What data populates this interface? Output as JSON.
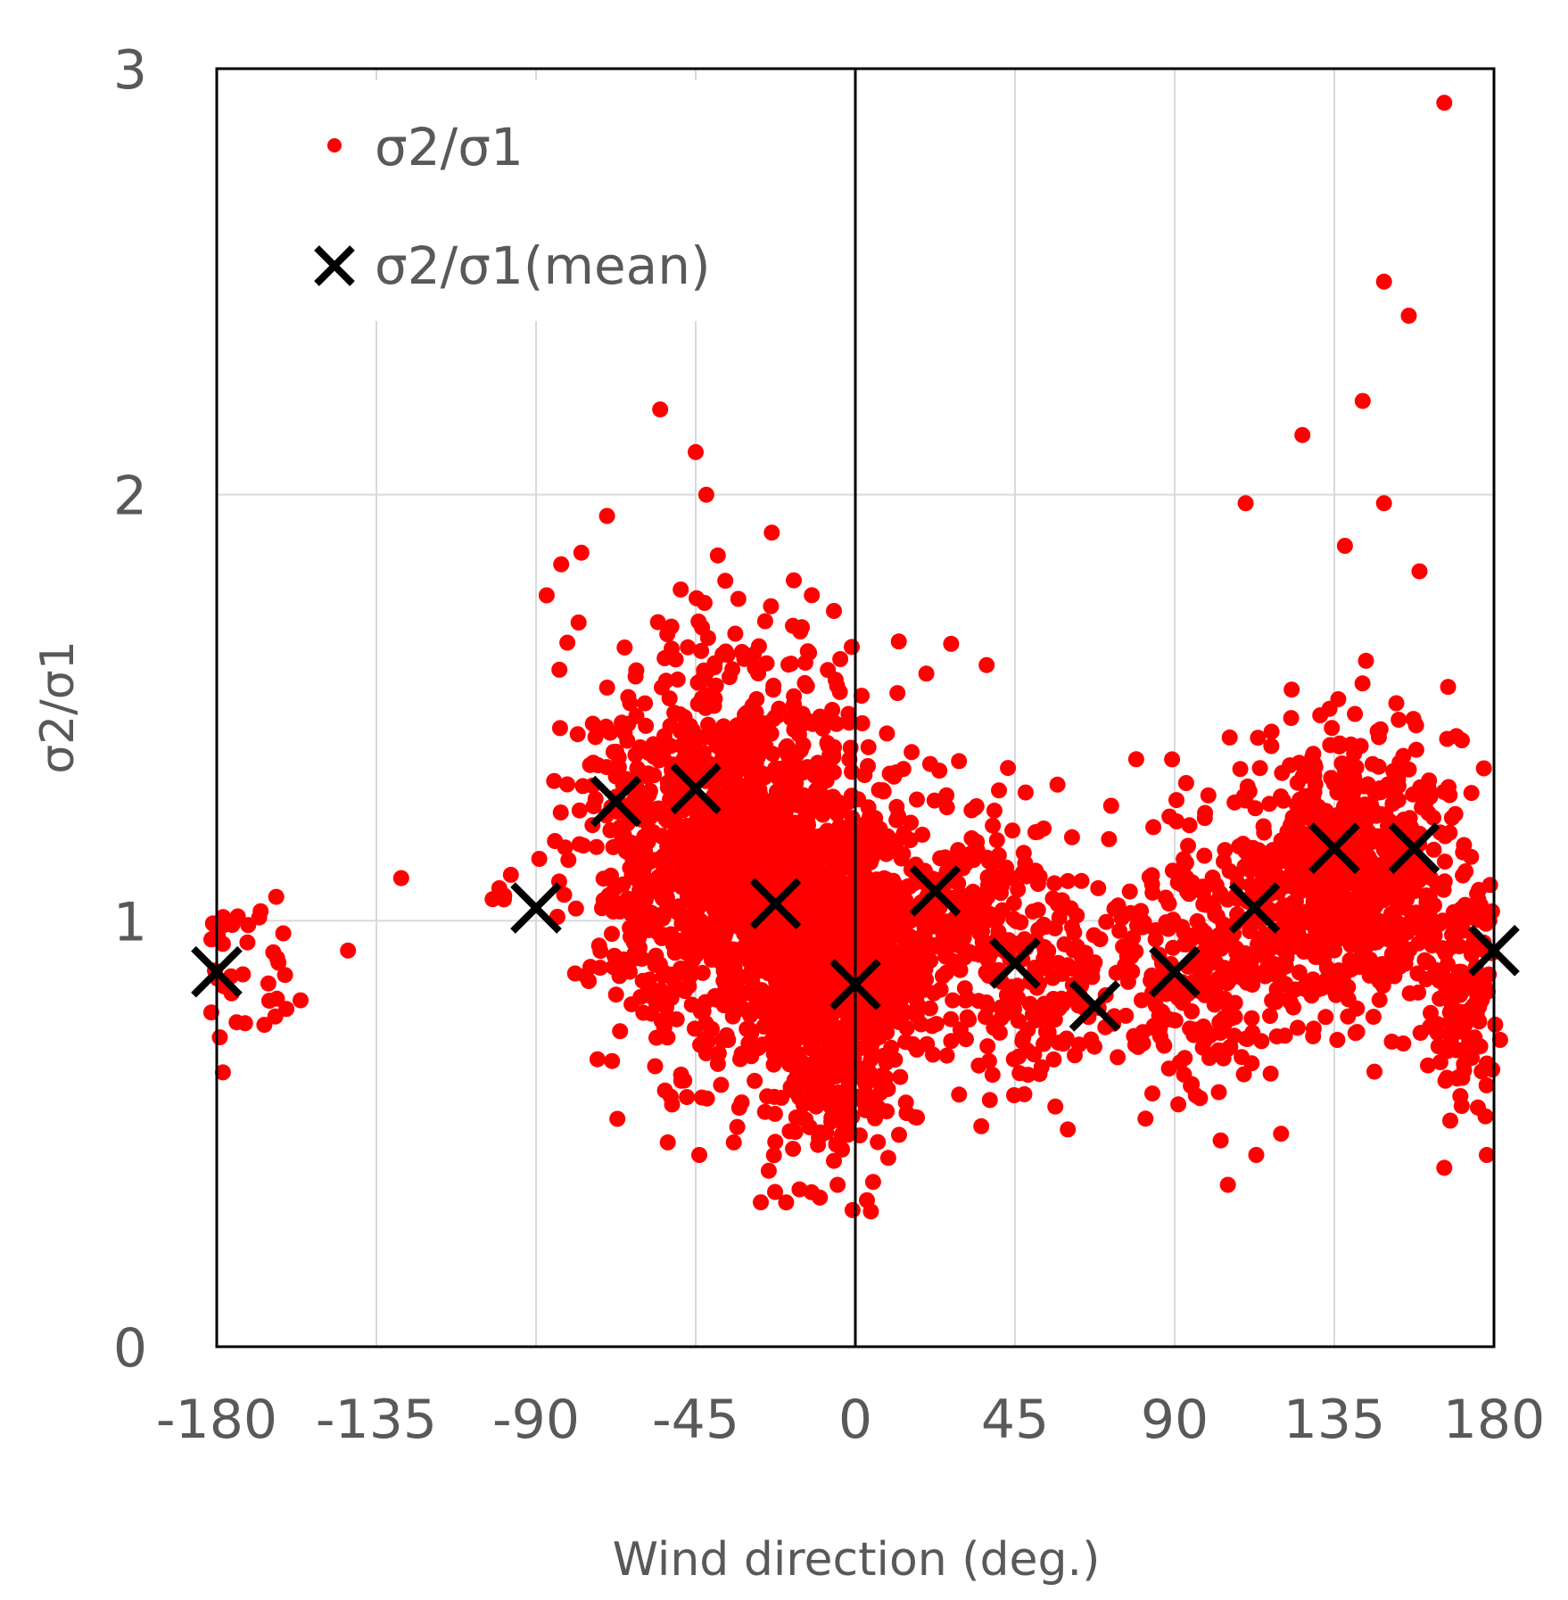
{
  "chart_data": {
    "type": "scatter",
    "title": "",
    "xlabel": "Wind direction (deg.)",
    "ylabel": "σ2/σ1",
    "xlim": [
      -180,
      180
    ],
    "ylim": [
      0,
      3
    ],
    "xticks": [
      -180,
      -135,
      -90,
      -45,
      0,
      45,
      90,
      135,
      180
    ],
    "yticks": [
      0,
      1,
      2,
      3
    ],
    "x_tick_labels": [
      "-180",
      "-135",
      "-90",
      "-45",
      "0",
      "45",
      "90",
      "135",
      "180"
    ],
    "y_tick_labels": [
      "0",
      "1",
      "2",
      "3"
    ],
    "grid": true,
    "legend_position": "top-left",
    "series": [
      {
        "name": "σ2/σ1",
        "marker": "dot",
        "color": "#ff0000",
        "clusters": [
          {
            "x_center": -173,
            "x_spread": 8,
            "y_center": 0.88,
            "y_spread": 0.1,
            "count": 40
          },
          {
            "x_center": -35,
            "x_spread": 20,
            "y_center": 1.15,
            "y_spread": 0.24,
            "count": 1300
          },
          {
            "x_center": -6,
            "x_spread": 12,
            "y_center": 0.88,
            "y_spread": 0.18,
            "count": 900
          },
          {
            "x_center": 25,
            "x_spread": 14,
            "y_center": 1.02,
            "y_spread": 0.14,
            "count": 260
          },
          {
            "x_center": 55,
            "x_spread": 12,
            "y_center": 0.86,
            "y_spread": 0.13,
            "count": 160
          },
          {
            "x_center": 98,
            "x_spread": 12,
            "y_center": 0.93,
            "y_spread": 0.16,
            "count": 260
          },
          {
            "x_center": 138,
            "x_spread": 16,
            "y_center": 1.12,
            "y_spread": 0.16,
            "count": 700
          },
          {
            "x_center": 172,
            "x_spread": 6,
            "y_center": 0.85,
            "y_spread": 0.16,
            "count": 120
          }
        ],
        "outliers": [
          {
            "x": -128,
            "y": 1.1
          },
          {
            "x": -143,
            "y": 0.93
          },
          {
            "x": -55,
            "y": 2.2
          },
          {
            "x": -45,
            "y": 2.1
          },
          {
            "x": -42,
            "y": 2.0
          },
          {
            "x": -70,
            "y": 1.95
          },
          {
            "x": -78,
            "y": 1.7
          },
          {
            "x": -44,
            "y": 0.45
          },
          {
            "x": -10,
            "y": 0.35
          },
          {
            "x": -5,
            "y": 0.38
          },
          {
            "x": 27,
            "y": 1.65
          },
          {
            "x": 37,
            "y": 1.6
          },
          {
            "x": 20,
            "y": 1.58
          },
          {
            "x": 105,
            "y": 0.38
          },
          {
            "x": 113,
            "y": 0.45
          },
          {
            "x": 120,
            "y": 0.5
          },
          {
            "x": 166,
            "y": 2.92
          },
          {
            "x": 149,
            "y": 2.5
          },
          {
            "x": 156,
            "y": 2.42
          },
          {
            "x": 143,
            "y": 2.22
          },
          {
            "x": 126,
            "y": 2.14
          },
          {
            "x": 110,
            "y": 1.98
          },
          {
            "x": 149,
            "y": 1.98
          },
          {
            "x": 159,
            "y": 1.82
          },
          {
            "x": 138,
            "y": 1.88
          },
          {
            "x": 166,
            "y": 0.42
          },
          {
            "x": 178,
            "y": 0.45
          }
        ]
      },
      {
        "name": "σ2/σ1(mean)",
        "marker": "x",
        "color": "#000000",
        "x": [
          -180,
          -90,
          -67.5,
          -45,
          -22.5,
          0,
          22.5,
          45,
          67.5,
          90,
          112.5,
          135,
          157.5,
          180
        ],
        "y": [
          0.88,
          1.03,
          1.28,
          1.31,
          1.04,
          0.85,
          1.07,
          0.9,
          0.8,
          0.88,
          1.03,
          1.17,
          1.17,
          0.93
        ]
      }
    ],
    "reference_lines": [
      {
        "axis": "x",
        "value": 0,
        "color": "#000000"
      }
    ]
  }
}
